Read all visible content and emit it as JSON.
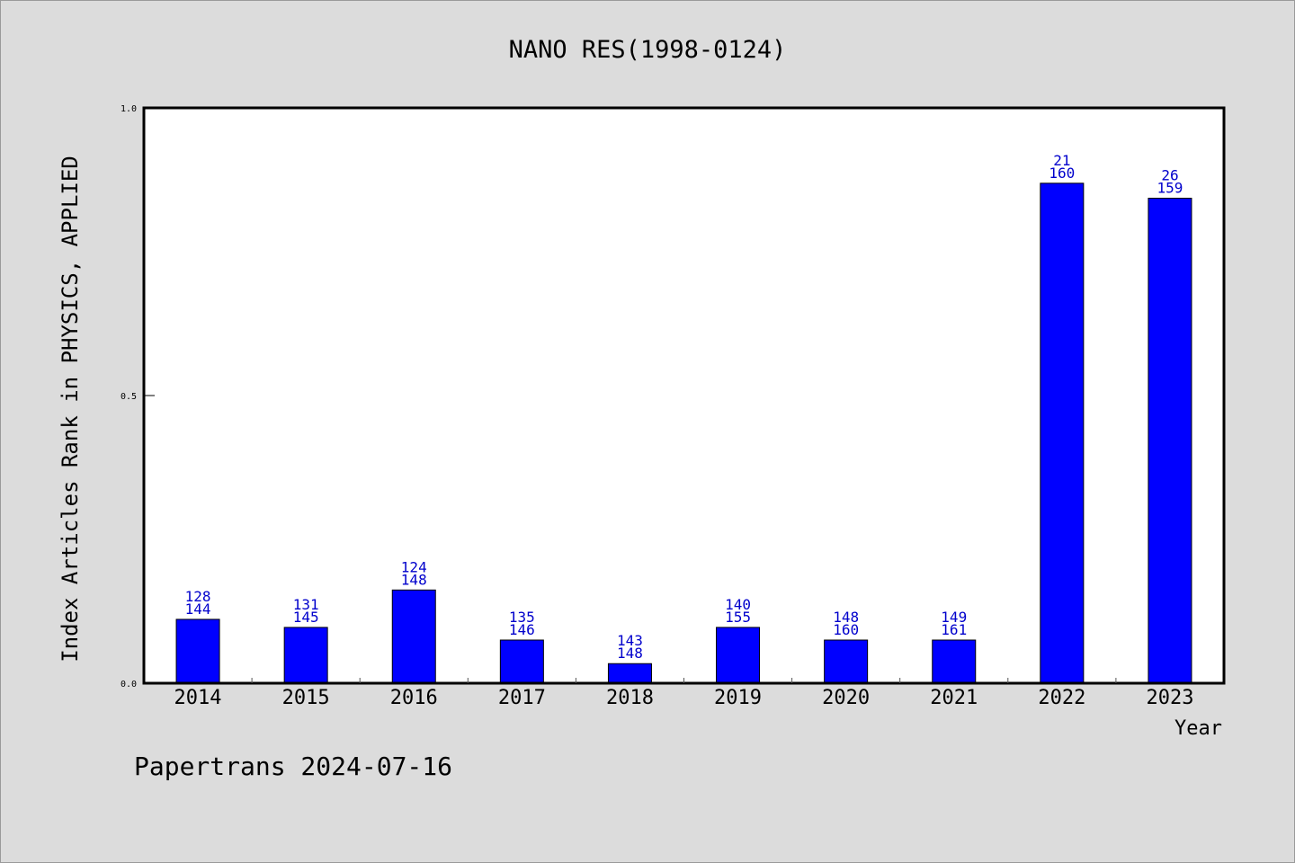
{
  "chart_data": {
    "type": "bar",
    "title": "NANO RES(1998-0124)",
    "xlabel": "Year",
    "ylabel": "Index Articles Rank in PHYSICS, APPLIED",
    "categories": [
      "2014",
      "2015",
      "2016",
      "2017",
      "2018",
      "2019",
      "2020",
      "2021",
      "2022",
      "2023"
    ],
    "values": [
      0.111,
      0.097,
      0.162,
      0.075,
      0.034,
      0.097,
      0.075,
      0.075,
      0.869,
      0.843
    ],
    "rank_labels": [
      "128",
      "131",
      "124",
      "135",
      "143",
      "140",
      "148",
      "149",
      "21",
      "26"
    ],
    "total_labels": [
      "144",
      "145",
      "148",
      "146",
      "148",
      "155",
      "160",
      "161",
      "160",
      "159"
    ],
    "ylim": [
      0.0,
      1.0
    ],
    "yticks": [
      "0.0",
      "0.5",
      "1.0"
    ],
    "grid": false,
    "colors": {
      "bar": "#0000ff",
      "label": "#0000cc",
      "background": "#dcdcdc",
      "plot_bg": "#ffffff"
    }
  },
  "footer": "Papertrans 2024-07-16"
}
